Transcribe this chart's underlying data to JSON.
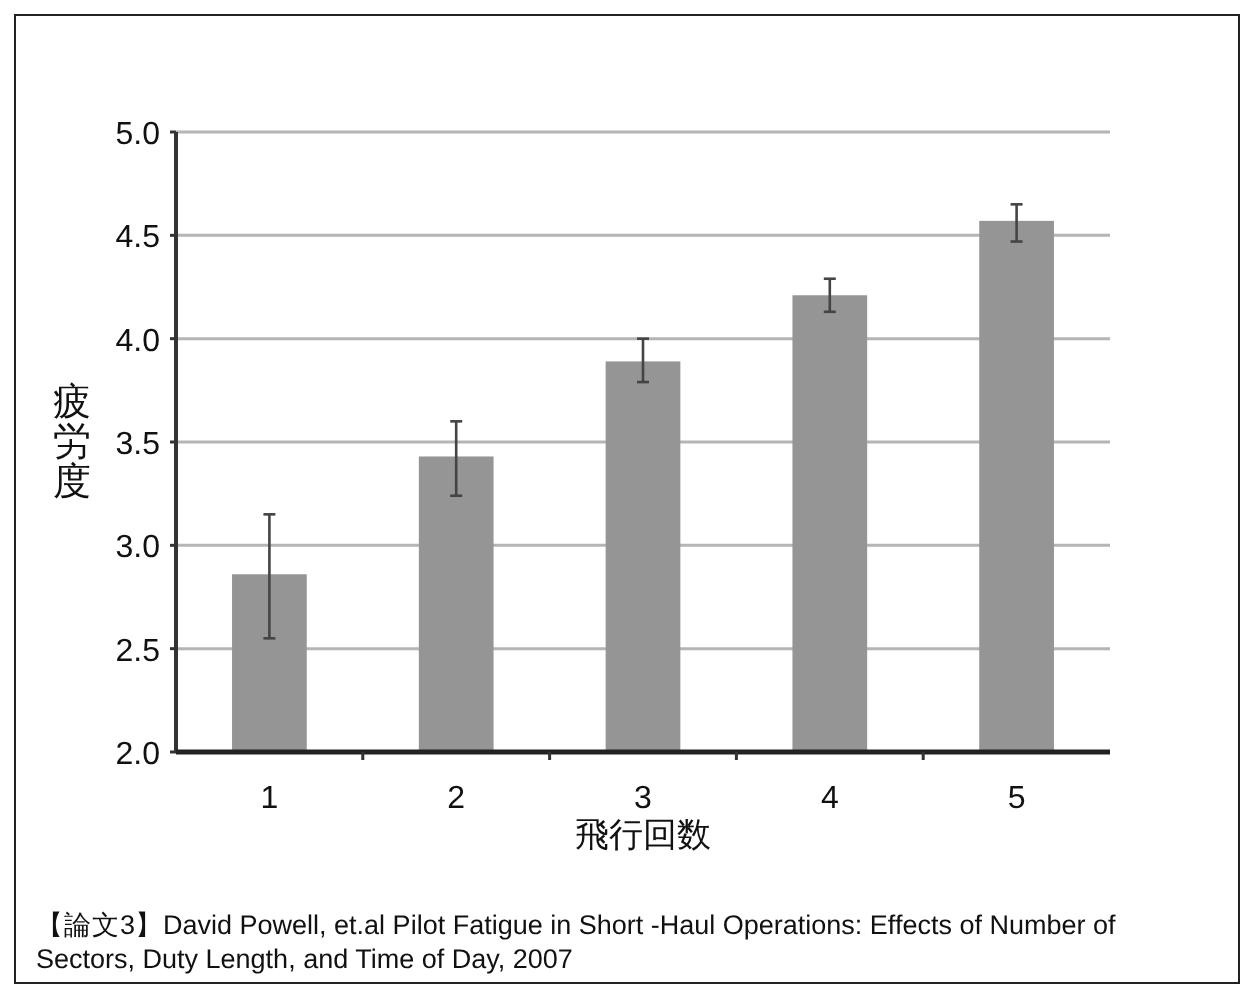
{
  "chart_data": {
    "type": "bar",
    "xlabel": "飛行回数",
    "ylabel": "疲労度",
    "categories": [
      "1",
      "2",
      "3",
      "4",
      "5"
    ],
    "values": [
      2.86,
      3.43,
      3.89,
      4.21,
      4.57
    ],
    "errors": [
      [
        2.55,
        3.15
      ],
      [
        3.24,
        3.6
      ],
      [
        3.79,
        4.0
      ],
      [
        4.13,
        4.29
      ],
      [
        4.47,
        4.65
      ]
    ],
    "color": "#959595",
    "ylim": [
      2.0,
      5.0
    ],
    "yticks": [
      {
        "value": 2,
        "label": "2.0"
      },
      {
        "value": 2.5,
        "label": "2.5"
      },
      {
        "value": 3,
        "label": "3.0"
      },
      {
        "value": 3.5,
        "label": "3.5"
      },
      {
        "value": 4,
        "label": "4.0"
      },
      {
        "value": 4.5,
        "label": "4.5"
      },
      {
        "value": 5,
        "label": "5.0"
      }
    ],
    "grid": "y",
    "annotations": [
      "【論文3】David Powell, et.al Pilot Fatigue in Short -Haul Operations: Effects of Number of Sectors, Duty Length, and Time of Day, 2007"
    ]
  }
}
